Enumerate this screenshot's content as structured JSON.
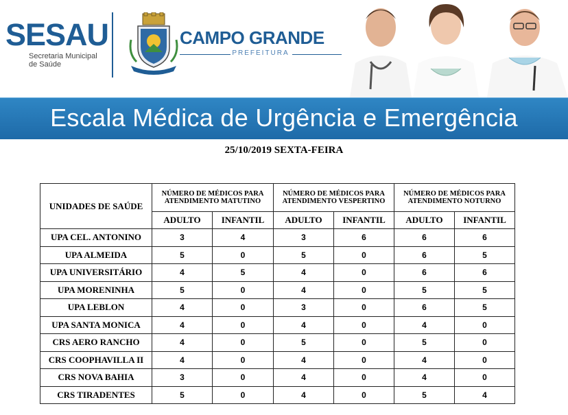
{
  "header": {
    "sesau_logo": "SESAU",
    "sesau_sub_line1": "Secretaria Municipal",
    "sesau_sub_line2": "de Saúde",
    "city_title": "CAMPO GRANDE",
    "city_sub": "PREFEITURA",
    "banner_title": "Escala Médica de Urgência e Emergência"
  },
  "date_line": "25/10/2019 SEXTA-FEIRA",
  "table": {
    "units_header": "UNIDADES DE SAÚDE",
    "groups": [
      "NÚMERO DE MÉDICOS PARA ATENDIMENTO MATUTINO",
      "NÚMERO DE MÉDICOS PARA ATENDIMENTO VESPERTINO",
      "NÚMERO DE MÉDICOS PARA ATENDIMENTO NOTURNO"
    ],
    "sub_headers": [
      "ADULTO",
      "INFANTIL",
      "ADULTO",
      "INFANTIL",
      "ADULTO",
      "INFANTIL"
    ],
    "rows": [
      {
        "unit": "UPA CEL. ANTONINO",
        "values": [
          "3",
          "4",
          "3",
          "6",
          "6",
          "6"
        ]
      },
      {
        "unit": "UPA ALMEIDA",
        "values": [
          "5",
          "0",
          "5",
          "0",
          "6",
          "5"
        ]
      },
      {
        "unit": "UPA UNIVERSITÁRIO",
        "values": [
          "4",
          "5",
          "4",
          "0",
          "6",
          "6"
        ]
      },
      {
        "unit": "UPA MORENINHA",
        "values": [
          "5",
          "0",
          "4",
          "0",
          "5",
          "5"
        ]
      },
      {
        "unit": "UPA LEBLON",
        "values": [
          "4",
          "0",
          "3",
          "0",
          "6",
          "5"
        ]
      },
      {
        "unit": "UPA SANTA MONICA",
        "values": [
          "4",
          "0",
          "4",
          "0",
          "4",
          "0"
        ]
      },
      {
        "unit": "CRS AERO RANCHO",
        "values": [
          "4",
          "0",
          "5",
          "0",
          "5",
          "0"
        ]
      },
      {
        "unit": "CRS COOPHAVILLA II",
        "values": [
          "4",
          "0",
          "4",
          "0",
          "4",
          "0"
        ]
      },
      {
        "unit": "CRS NOVA BAHIA",
        "values": [
          "3",
          "0",
          "4",
          "0",
          "4",
          "0"
        ]
      },
      {
        "unit": "CRS TIRADENTES",
        "values": [
          "5",
          "0",
          "4",
          "0",
          "5",
          "4"
        ]
      }
    ]
  },
  "colors": {
    "brand_blue": "#1f5d95",
    "banner_blue": "#2a7bbd"
  },
  "icons": [
    "city-coat-of-arms-icon",
    "doctors-photo"
  ]
}
